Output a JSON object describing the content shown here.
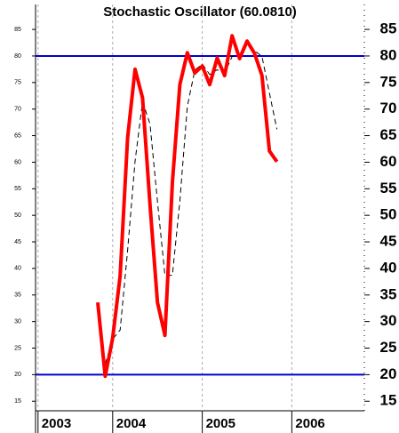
{
  "chart_data": {
    "type": "line",
    "title": "Stochastic Oscillator (60.0810)",
    "categories": [
      "2003",
      null,
      null,
      null,
      null,
      null,
      null,
      null,
      null,
      null,
      "2004",
      null,
      null,
      null,
      null,
      null,
      null,
      null,
      null,
      null,
      null,
      null,
      "2005",
      null,
      null,
      null,
      null,
      null,
      null,
      null,
      null,
      null,
      null,
      null,
      "2006",
      null,
      null,
      null,
      null,
      null,
      null,
      null,
      null,
      null
    ],
    "series": [
      {
        "color": "#ff0000",
        "values": [
          null,
          null,
          null,
          null,
          null,
          null,
          null,
          null,
          33.6,
          19.7,
          26.9,
          38.6,
          64.6,
          77.5,
          72.1,
          52,
          33.6,
          27.4,
          56.2,
          74.6,
          80.6,
          76.8,
          78.1,
          74.6,
          79.6,
          76.3,
          83.8,
          79.5,
          82.8,
          80.5,
          76.3,
          62.1,
          60.1,
          null,
          null,
          null,
          null,
          null,
          null,
          null,
          null,
          null,
          null,
          null
        ]
      },
      {
        "color": "#000000",
        "dashed": true,
        "values": [
          null,
          null,
          null,
          null,
          null,
          null,
          null,
          null,
          null,
          22,
          26.7,
          28.4,
          43.4,
          60.2,
          71.4,
          67.2,
          52.6,
          38.7,
          38.7,
          52.7,
          70.5,
          77.3,
          78.5,
          76.5,
          77.4,
          76.8,
          79.9,
          79.9,
          82,
          81,
          79.9,
          73,
          66.2,
          null,
          null,
          null,
          null,
          null,
          null,
          null,
          null,
          null,
          null,
          null
        ]
      }
    ],
    "hlines": [
      80,
      20
    ],
    "hline_color": "#0000cc",
    "ylim": [
      13.2,
      89.7
    ],
    "yticks": [
      15,
      20,
      25,
      30,
      35,
      40,
      45,
      50,
      55,
      60,
      65,
      70,
      75,
      80,
      85
    ],
    "grid": true
  }
}
